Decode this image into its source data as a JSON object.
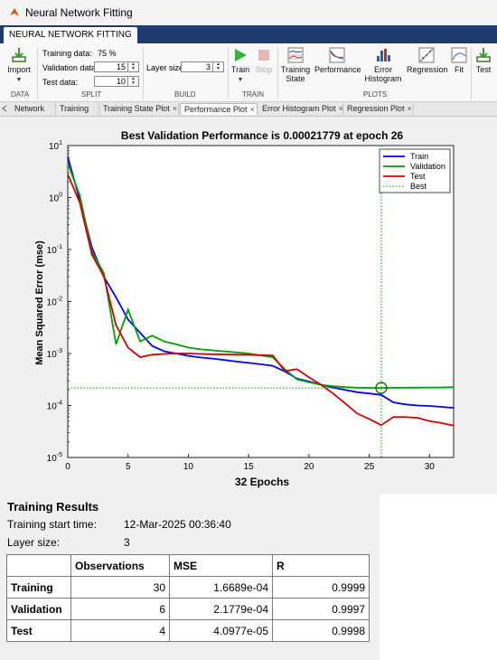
{
  "window": {
    "title": "Neural Network Fitting"
  },
  "ribbon": {
    "tab": "NEURAL NETWORK FITTING",
    "import_label": "Import",
    "training_data_label": "Training data:",
    "training_data_value": "75 %",
    "validation_data_label": "Validation data:",
    "validation_data_value": "15",
    "test_data_label": "Test data:",
    "test_data_value": "10",
    "layer_size_label": "Layer size:",
    "layer_size_value": "3",
    "train_label": "Train",
    "stop_label": "Stop",
    "training_state_label_1": "Training",
    "training_state_label_2": "State",
    "performance_label": "Performance",
    "error_hist_label_1": "Error",
    "error_hist_label_2": "Histogram",
    "regression_label": "Regression",
    "fit_label": "Fit",
    "test_label": "Test",
    "groups": {
      "data": "DATA",
      "split": "SPLIT",
      "build": "BUILD",
      "train": "TRAIN",
      "plots": "PLOTS"
    }
  },
  "doc_tabs": [
    "Network",
    "Training",
    "Training State Plot",
    "Performance Plot",
    "Error Histogram Plot",
    "Regression Plot"
  ],
  "close_glyph": "×",
  "chart_data": {
    "type": "line",
    "title": "Best Validation Performance is 0.00021779 at epoch 26",
    "xlabel": "32 Epochs",
    "ylabel": "Mean Squared Error  (mse)",
    "xlim": [
      0,
      32
    ],
    "ylim_log10": [
      -5,
      1
    ],
    "yscale": "log",
    "xticks": [
      0,
      5,
      10,
      15,
      20,
      25,
      30
    ],
    "yticks": [
      {
        "base": "10",
        "exp": "1",
        "value": 10
      },
      {
        "base": "10",
        "exp": "0",
        "value": 1
      },
      {
        "base": "10",
        "exp": "-1",
        "value": 0.1
      },
      {
        "base": "10",
        "exp": "-2",
        "value": 0.01
      },
      {
        "base": "10",
        "exp": "-3",
        "value": 0.001
      },
      {
        "base": "10",
        "exp": "-4",
        "value": 0.0001
      },
      {
        "base": "10",
        "exp": "-5",
        "value": 1e-05
      }
    ],
    "legend_position": "top-right",
    "series": [
      {
        "name": "Train",
        "color": "#0000ff",
        "style": "solid",
        "x": [
          0,
          1,
          2,
          3,
          4,
          5,
          6,
          7,
          8,
          9,
          10,
          11,
          12,
          13,
          14,
          15,
          16,
          17,
          18,
          19,
          20,
          21,
          22,
          23,
          24,
          25,
          26,
          27,
          28,
          29,
          30,
          31,
          32
        ],
        "y": [
          6,
          0.9,
          0.11,
          0.03,
          0.012,
          0.0045,
          0.0025,
          0.0014,
          0.0011,
          0.001,
          0.0009,
          0.00084,
          0.0008,
          0.00075,
          0.0007,
          0.00066,
          0.00062,
          0.00058,
          0.00045,
          0.00033,
          0.00029,
          0.00025,
          0.00022,
          0.0002,
          0.00018,
          0.00017,
          0.00016,
          0.000115,
          0.000105,
          0.0001,
          9.8e-05,
          9.4e-05,
          9e-05
        ]
      },
      {
        "name": "Validation",
        "color": "#00a000",
        "style": "solid",
        "x": [
          0,
          1,
          2,
          3,
          4,
          5,
          6,
          7,
          8,
          9,
          10,
          11,
          12,
          13,
          14,
          15,
          16,
          17,
          18,
          19,
          20,
          21,
          22,
          23,
          24,
          25,
          26,
          27,
          28,
          29,
          30,
          31,
          32
        ],
        "y": [
          4.5,
          1.1,
          0.09,
          0.035,
          0.0015,
          0.007,
          0.0017,
          0.0022,
          0.0017,
          0.0015,
          0.0013,
          0.0012,
          0.00115,
          0.0011,
          0.00105,
          0.001,
          0.00092,
          0.00085,
          0.0005,
          0.00032,
          0.00028,
          0.00025,
          0.000235,
          0.000225,
          0.00022,
          0.000218,
          0.00021779,
          0.000219,
          0.00022,
          0.000221,
          0.000222,
          0.000223,
          0.000225
        ]
      },
      {
        "name": "Test",
        "color": "#d00000",
        "style": "solid",
        "x": [
          0,
          1,
          2,
          3,
          4,
          5,
          6,
          7,
          8,
          9,
          10,
          11,
          12,
          13,
          14,
          15,
          16,
          17,
          18,
          19,
          20,
          21,
          22,
          23,
          24,
          25,
          26,
          27,
          28,
          29,
          30,
          31,
          32
        ],
        "y": [
          2.8,
          0.8,
          0.08,
          0.03,
          0.0035,
          0.0013,
          0.00085,
          0.00095,
          0.00098,
          0.001,
          0.001,
          0.00098,
          0.00097,
          0.00096,
          0.00095,
          0.00094,
          0.00093,
          0.00092,
          0.00046,
          0.0005,
          0.00035,
          0.00025,
          0.00017,
          0.00011,
          7e-05,
          5.5e-05,
          4.2e-05,
          6e-05,
          6e-05,
          5.8e-05,
          5e-05,
          4.6e-05,
          4.1e-05
        ]
      },
      {
        "name": "Best",
        "color": "#00a000",
        "style": "dotted",
        "best_epoch": 26,
        "best_value": 0.00021779
      }
    ]
  },
  "results": {
    "title": "Training Results",
    "start_label": "Training start time:",
    "start_value": "12-Mar-2025 00:36:40",
    "layer_label": "Layer size:",
    "layer_value": "3",
    "columns": [
      "",
      "Observations",
      "MSE",
      "R"
    ],
    "rows": [
      {
        "name": "Training",
        "obs": "30",
        "mse": "1.6689e-04",
        "r": "0.9999"
      },
      {
        "name": "Validation",
        "obs": "6",
        "mse": "2.1779e-04",
        "r": "0.9997"
      },
      {
        "name": "Test",
        "obs": "4",
        "mse": "4.0977e-05",
        "r": "0.9998"
      }
    ]
  }
}
